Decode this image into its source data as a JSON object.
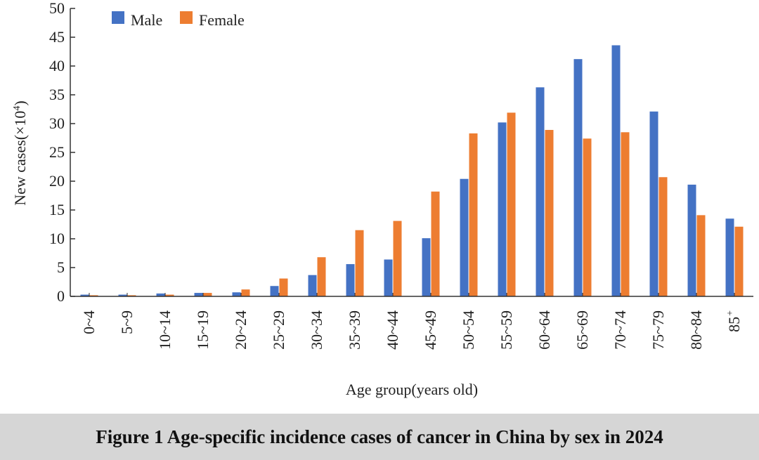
{
  "chart_data": {
    "type": "bar",
    "title": "",
    "xlabel": "Age group(years old)",
    "ylabel": "New cases(×10",
    "ylabel_sup": "4",
    "ylabel_close": ")",
    "ylim": [
      0,
      50
    ],
    "yticks": [
      0,
      5,
      10,
      15,
      20,
      25,
      30,
      35,
      40,
      45,
      50
    ],
    "grid": false,
    "legend_position": "top-left",
    "categories": [
      "0~4",
      "5~9",
      "10~14",
      "15~19",
      "20~24",
      "25~29",
      "30~34",
      "35~39",
      "40~44",
      "45~49",
      "50~54",
      "55~59",
      "60~64",
      "65~69",
      "70~74",
      "75~79",
      "80~84",
      "85+"
    ],
    "series": [
      {
        "name": "Male",
        "color": "#4472c4",
        "values": [
          0.3,
          0.3,
          0.5,
          0.6,
          0.7,
          1.8,
          3.7,
          5.6,
          6.4,
          10.1,
          20.4,
          30.2,
          36.3,
          41.2,
          43.6,
          32.1,
          19.4,
          13.5
        ]
      },
      {
        "name": "Female",
        "color": "#ed7d31",
        "values": [
          0.2,
          0.2,
          0.3,
          0.6,
          1.2,
          3.1,
          6.8,
          11.5,
          13.1,
          18.2,
          28.3,
          31.9,
          28.9,
          27.4,
          28.5,
          20.7,
          14.1,
          12.1
        ]
      }
    ]
  },
  "caption": "Figure 1    Age-specific incidence cases of cancer in China by sex in 2024"
}
